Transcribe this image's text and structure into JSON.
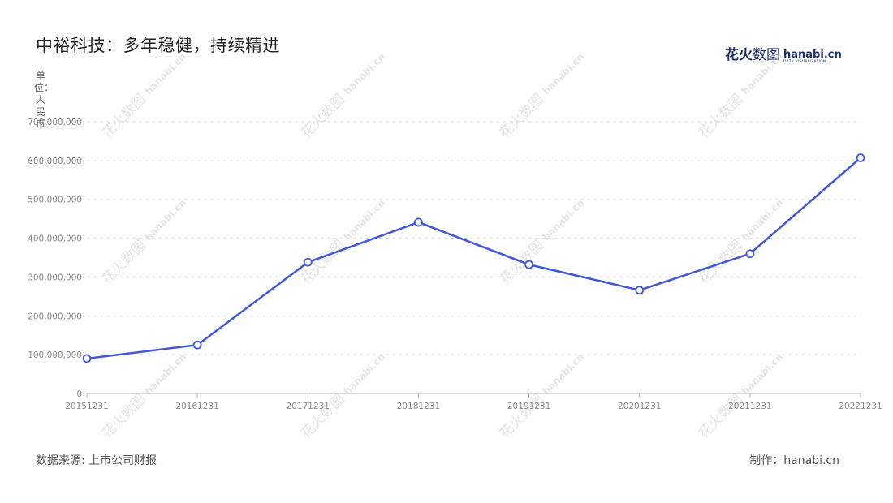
{
  "title": "中裕科技：多年稳健，持续精进",
  "brand": {
    "main_bold": "花火",
    "main_thin": "数图",
    "en": "hanabi.cn",
    "en_sub": "DATA VISUALIZATION"
  },
  "unit_label": "单位：人民币",
  "source": "数据来源: 上市公司财报",
  "maker": "制作：hanabi.cn",
  "watermark": {
    "cn": "花火数图",
    "en": "hanabi.cn"
  },
  "colors": {
    "line": "#3f57e0",
    "grid": "#dddddd",
    "marker_fill": "#ffffff"
  },
  "chart_data": {
    "type": "line",
    "title": "中裕科技：多年稳健，持续精进",
    "xlabel": "",
    "ylabel": "单位：人民币",
    "categories": [
      "20151231",
      "20161231",
      "20171231",
      "20181231",
      "20191231",
      "20201231",
      "20211231",
      "20221231"
    ],
    "series": [
      {
        "values": [
          90000000,
          125000000,
          338000000,
          441000000,
          332000000,
          266000000,
          360000000,
          607000000
        ]
      }
    ],
    "ylim": [
      0,
      700000000
    ],
    "yticks": [
      0,
      100000000,
      200000000,
      300000000,
      400000000,
      500000000,
      600000000,
      700000000
    ],
    "ytick_labels": [
      "0",
      "100,000,000",
      "200,000,000",
      "300,000,000",
      "400,000,000",
      "500,000,000",
      "600,000,000",
      "700,000,000"
    ],
    "grid": true,
    "legend": "none"
  }
}
